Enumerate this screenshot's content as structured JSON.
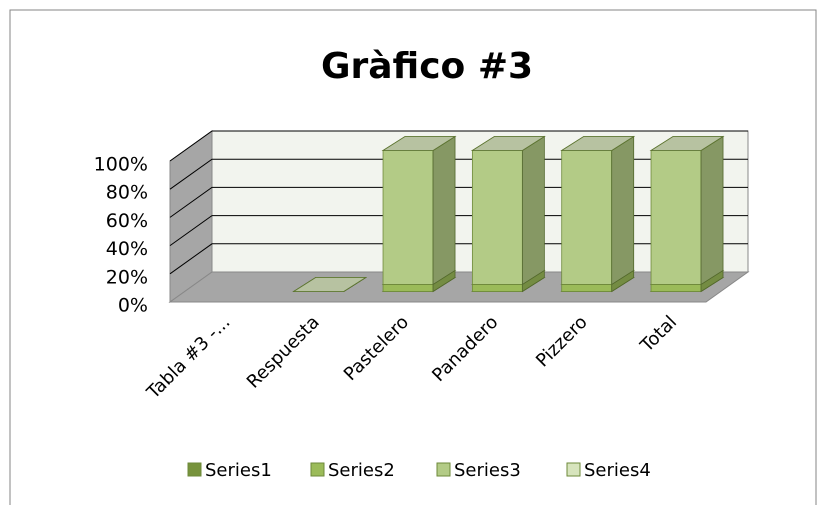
{
  "chart_data": {
    "type": "bar3d_stacked",
    "title": "Gràfico #3",
    "categories": [
      "Tabla #3 -...",
      "Respuesta",
      "Pastelero",
      "Panadero",
      "Pizzero",
      "Total"
    ],
    "series": [
      {
        "name": "Series1",
        "color": "#77933c",
        "values": [
          null,
          0,
          0,
          0,
          0,
          0
        ]
      },
      {
        "name": "Series2",
        "color": "#9bbb59",
        "values": [
          null,
          0,
          5,
          5,
          5,
          5
        ]
      },
      {
        "name": "Series3",
        "color": "#b3cb86",
        "values": [
          null,
          0,
          95,
          95,
          95,
          95
        ]
      },
      {
        "name": "Series4",
        "color": "#d7e4bd",
        "values": [
          null,
          0,
          0,
          0,
          0,
          0
        ]
      }
    ],
    "ylim": [
      0,
      100
    ],
    "yticks": [
      {
        "value": 0,
        "label": "0%"
      },
      {
        "value": 20,
        "label": "20%"
      },
      {
        "value": 40,
        "label": "40%"
      },
      {
        "value": 60,
        "label": "60%"
      },
      {
        "value": 80,
        "label": "80%"
      },
      {
        "value": 100,
        "label": "100%"
      }
    ],
    "grid": true,
    "legend": "bottom"
  }
}
